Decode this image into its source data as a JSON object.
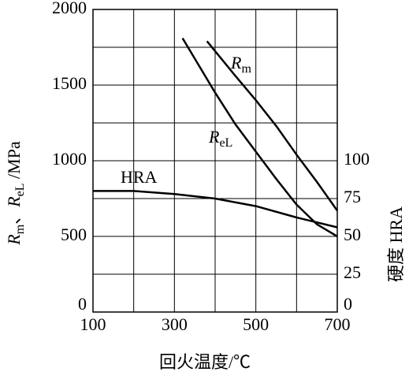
{
  "chart_data": {
    "type": "line",
    "xlabel": "回火温度/℃",
    "ylabel_parts": [
      "R",
      "m",
      "、",
      "R",
      "eL",
      " /MPa"
    ],
    "y2label": "硬度  HRA",
    "xlim": [
      100,
      700
    ],
    "xticks": [
      100,
      300,
      500,
      700
    ],
    "xgrid": [
      100,
      200,
      300,
      400,
      500,
      600,
      700
    ],
    "ylim": [
      0,
      2000
    ],
    "yticks": [
      0,
      500,
      1000,
      1500,
      2000
    ],
    "ygrid": [
      0,
      250,
      500,
      750,
      1000,
      1250,
      1500,
      1750,
      2000
    ],
    "y2lim": [
      0,
      200
    ],
    "y2ticks": [
      0,
      25,
      50,
      75,
      100
    ],
    "grid": true,
    "series": [
      {
        "name_parts": [
          "R",
          "m"
        ],
        "color": "#000000",
        "x": [
          380,
          450,
          500,
          550,
          600,
          650,
          700
        ],
        "values": [
          1790,
          1560,
          1400,
          1230,
          1040,
          860,
          670
        ]
      },
      {
        "name_parts": [
          "R",
          "eL"
        ],
        "color": "#000000",
        "x": [
          320,
          400,
          450,
          500,
          550,
          600,
          650,
          700
        ],
        "values": [
          1810,
          1450,
          1240,
          1060,
          880,
          710,
          580,
          500
        ]
      },
      {
        "name": "HRA",
        "color": "#000000",
        "axis": "y2",
        "x": [
          100,
          200,
          300,
          400,
          500,
          600,
          700
        ],
        "values": [
          80,
          80,
          78,
          75,
          70,
          62.5,
          56
        ]
      }
    ]
  }
}
